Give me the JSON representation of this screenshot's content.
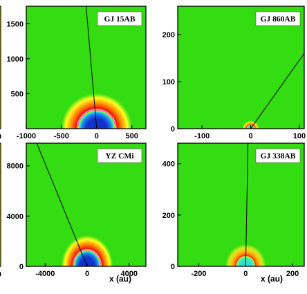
{
  "figure": {
    "xlabel": "x (au)"
  },
  "colors": {
    "background": "#33dd11",
    "low": "#1133cc",
    "mid": "#22e0e0",
    "high_orange": "#ff8800",
    "high_red": "#ee1100",
    "peak": "#ff00cc"
  },
  "chart_data": [
    {
      "type": "heatmap",
      "label": "GJ 15AB",
      "xlim": [
        -1000,
        700
      ],
      "ylim": [
        0,
        1750
      ],
      "xticks": [
        "-1000",
        "-500",
        "0",
        "500"
      ],
      "yticks": [
        "500",
        "1000",
        "1500"
      ],
      "left_edge_tick": "0",
      "inner_front_radius": 540,
      "outer_front_radius": 1100,
      "line": [
        [
          -150,
          1750
        ],
        [
          0,
          0
        ]
      ]
    },
    {
      "type": "heatmap",
      "label": "GJ 860AB",
      "xlim": [
        -150,
        110
      ],
      "ylim": [
        0,
        260
      ],
      "xticks": [
        "-100",
        "0",
        "100"
      ],
      "yticks": [
        "0",
        "100",
        "200"
      ],
      "inner_front_radius": 30,
      "outer_front_radius": 110,
      "line": [
        [
          0,
          0
        ],
        [
          110,
          160
        ]
      ]
    },
    {
      "type": "heatmap",
      "label": "YZ CMi",
      "xlim": [
        -5800,
        5600
      ],
      "ylim": [
        0,
        9800
      ],
      "xticks": [
        "-4000",
        "0",
        "4000"
      ],
      "yticks": [
        "0",
        "4000",
        "8000"
      ],
      "left_edge_tick": "0",
      "inner_front_radius": 2900,
      "outer_front_radius": 6500,
      "line": [
        [
          -4800,
          9800
        ],
        [
          0,
          0
        ]
      ],
      "xlabel_shown": true
    },
    {
      "type": "heatmap",
      "label": "GJ 338AB",
      "xlim": [
        -290,
        250
      ],
      "ylim": [
        0,
        480
      ],
      "xticks": [
        "-200",
        "0",
        "200"
      ],
      "yticks": [
        "0",
        "200",
        "400"
      ],
      "inner_front_radius": 115,
      "outer_front_radius": 320,
      "line": [
        [
          10,
          480
        ],
        [
          0,
          0
        ]
      ],
      "xlabel_shown": true
    }
  ]
}
